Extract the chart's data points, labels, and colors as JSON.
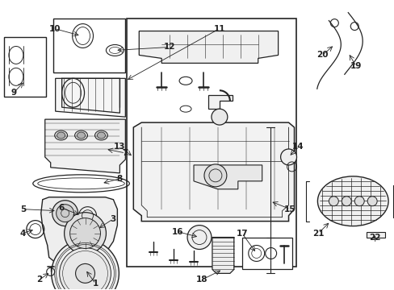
{
  "bg_color": "#ffffff",
  "line_color": "#222222",
  "fig_width": 4.89,
  "fig_height": 3.6,
  "dpi": 100,
  "font_size": 7.5
}
